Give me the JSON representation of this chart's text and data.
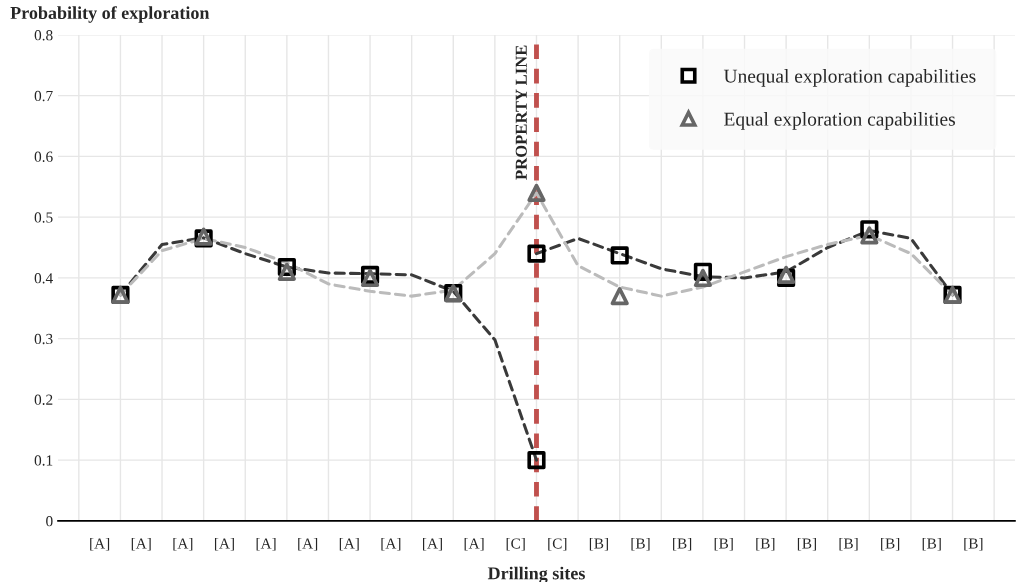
{
  "chart_data": {
    "type": "scatter",
    "ylabel": "Probability of exploration",
    "xlabel": "Drilling sites",
    "categories": [
      null,
      null,
      null,
      null,
      null,
      null,
      null,
      null,
      null,
      null,
      null,
      null,
      null,
      null,
      null,
      null,
      null,
      null,
      null,
      null,
      null,
      null,
      null
    ],
    "ylim": [
      0,
      0.8
    ],
    "yticks": [
      0,
      0.1,
      0.2,
      0.3,
      0.4,
      0.5,
      0.6,
      0.7,
      0.8
    ],
    "grid": true,
    "legend": "top right",
    "annotations": [
      "PROPERTY LINE",
      "[A]",
      "[A]",
      "[A]",
      "[A]",
      "[A]",
      "[A]",
      "[A]",
      "[A]",
      "[A]",
      "[A]",
      "[C]",
      "[C]",
      "[B]",
      "[B]",
      "[B]",
      "[B]",
      "[B]",
      "[B]",
      "[B]",
      "[B]",
      "[B]",
      "[B]"
    ],
    "series": [
      {
        "type": "line",
        "line_style": "dashed",
        "marker": "none",
        "color": "#3a3a3a",
        "values": [
          null,
          0.372,
          0.455,
          0.466,
          0.44,
          0.418,
          0.408,
          0.407,
          0.405,
          0.378,
          0.298,
          0.1,
          null,
          null,
          null,
          null,
          null,
          null,
          null,
          null,
          null,
          null,
          null
        ]
      },
      {
        "type": "line",
        "line_style": "dashed",
        "marker": "none",
        "color": "#3a3a3a",
        "values": [
          null,
          null,
          null,
          null,
          null,
          null,
          null,
          null,
          null,
          null,
          null,
          0.44,
          0.465,
          0.44,
          0.415,
          0.402,
          0.4,
          0.41,
          0.45,
          0.478,
          0.465,
          0.372,
          null
        ]
      },
      {
        "type": "line",
        "line_style": "dashed",
        "marker": "none",
        "color": "#bbbbbb",
        "values": [
          null,
          0.372,
          0.445,
          0.465,
          0.45,
          0.425,
          0.39,
          0.378,
          0.37,
          0.38,
          0.44,
          0.54,
          0.42,
          0.385,
          0.37,
          0.385,
          0.41,
          0.435,
          0.455,
          0.47,
          0.44,
          0.372,
          null
        ]
      },
      {
        "name": "Unequal exploration capabilities",
        "marker": "square",
        "color": "#000000",
        "values": [
          null,
          0.372,
          null,
          0.465,
          null,
          0.418,
          null,
          0.405,
          null,
          0.375,
          null,
          0.44,
          null,
          0.437,
          null,
          0.41,
          null,
          0.4,
          null,
          0.48,
          null,
          0.372,
          null
        ]
      },
      {
        "marker": "square",
        "color": "#000000",
        "values": [
          null,
          null,
          null,
          null,
          null,
          null,
          null,
          null,
          null,
          null,
          null,
          0.1,
          null,
          null,
          null,
          null,
          null,
          null,
          null,
          null,
          null,
          null,
          null
        ]
      },
      {
        "name": "Equal exploration capabilities",
        "marker": "triangle",
        "color": "#666666",
        "values": [
          null,
          0.372,
          null,
          0.468,
          null,
          0.41,
          null,
          0.4,
          null,
          0.375,
          null,
          0.54,
          null,
          0.37,
          null,
          0.4,
          null,
          0.405,
          null,
          0.47,
          null,
          0.372,
          null
        ]
      }
    ]
  }
}
